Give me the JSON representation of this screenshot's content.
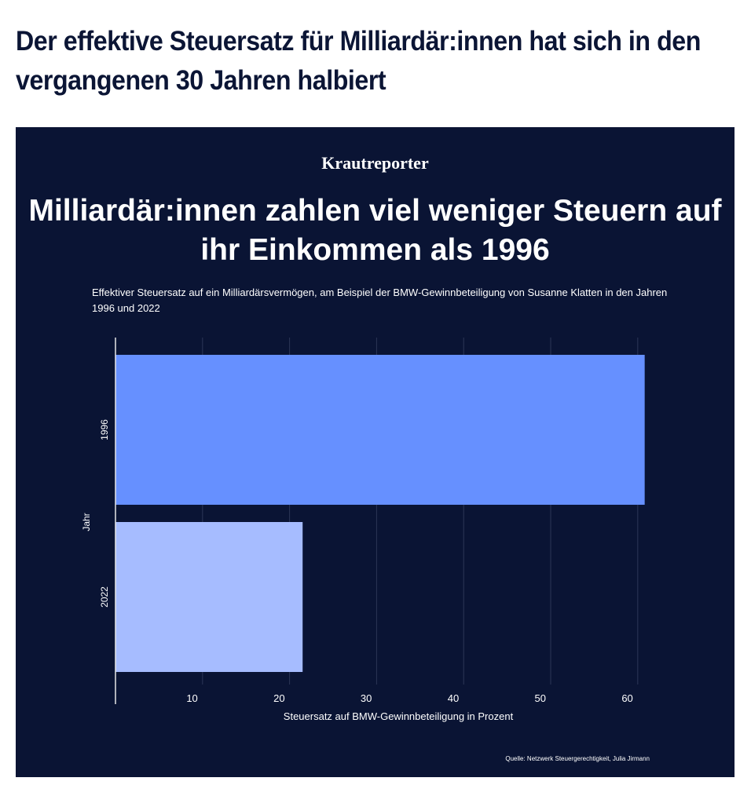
{
  "headline": "Der effektive Steuersatz für Milliardär:innen hat sich in den vergangenen 30 Jahren halbiert",
  "logo": "Krautreporter",
  "source": "Quelle: Netzwerk Steuergerechtigkeit, Julia Jirmann",
  "colors": {
    "background": "#0a1434",
    "bar_1996": "#6690ff",
    "bar_2022": "#a6bcff"
  },
  "chart_data": {
    "type": "bar",
    "orientation": "horizontal",
    "title": "Milliardär:innen zahlen viel weniger Steuern auf ihr Einkommen als 1996",
    "subtitle": "Effektiver Steuersatz auf ein Milliardärsvermögen, am Beispiel der BMW-Gewinnbeteiligung von Susanne Klatten in den Jahren 1996 und 2022",
    "categories": [
      "1996",
      "2022"
    ],
    "values": [
      60.8,
      21.5
    ],
    "xlabel": "Steuersatz auf BMW-Gewinnbeteiligung in Prozent",
    "ylabel": "Jahr",
    "xlim": [
      0,
      62
    ],
    "xticks": [
      "10",
      "20",
      "30",
      "40",
      "50",
      "60"
    ],
    "grid": true
  }
}
